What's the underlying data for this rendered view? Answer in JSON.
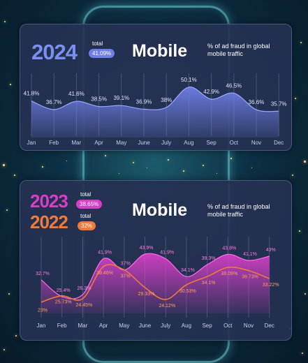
{
  "colors": {
    "mobile_2024": "#6f7fe6",
    "mobile_2023": "#d63fc8",
    "mobile_2022": "#f07a3a",
    "label_2023": "#ff7ee4",
    "label_2022": "#ffa25f",
    "panel": "#263052"
  },
  "top_panel": {
    "year": "2024",
    "total_label": "total",
    "total_value": "41.09%",
    "heading": "Mobile",
    "description": "% of ad fraud in global mobile traffic"
  },
  "bottom_panel": {
    "year_a": "2023",
    "total_label_a": "total",
    "total_value_a": "38.65%",
    "year_b": "2022",
    "total_label_b": "total",
    "total_value_b": "32%",
    "heading": "Mobile",
    "description": "% of ad fraud in global mobile traffic"
  },
  "chart_data": [
    {
      "type": "area",
      "categories": [
        "Jan",
        "Feb",
        "Mar",
        "Apr",
        "May",
        "June",
        "July",
        "Aug",
        "Sep",
        "Oct",
        "Nov",
        "Dec"
      ],
      "series": [
        {
          "name": "2024",
          "values": [
            41.8,
            36.7,
            41.6,
            38.5,
            39.1,
            36.9,
            38,
            50.1,
            42.9,
            46.5,
            36.6,
            35.7
          ],
          "labels": [
            "41.8%",
            "36.7%",
            "41.6%",
            "38.5%",
            "39.1%",
            "36.9%",
            "38%",
            "50.1%",
            "42.9%",
            "46.5%",
            "36.6%",
            "35.7%"
          ]
        }
      ],
      "grid": "vertical lines at each month"
    },
    {
      "type": "area",
      "categories": [
        "Jan",
        "Feb",
        "Mar",
        "Apr",
        "May",
        "June",
        "July",
        "Aug",
        "Sep",
        "Oct",
        "Nov",
        "Dec"
      ],
      "series": [
        {
          "name": "2023",
          "values": [
            32.7,
            25.4,
            26.3,
            41.9,
            37,
            43.9,
            41.9,
            34.1,
            39.3,
            43.8,
            41.1,
            43
          ],
          "labels": [
            "32.7%",
            "25.4%",
            "26.3%",
            "41.9%",
            "37%",
            "43.9%",
            "41.9%",
            "34.1%",
            "39.3%",
            "43.8%",
            "41.1%",
            "43%"
          ]
        },
        {
          "name": "2022",
          "values": [
            23,
            25.73,
            24.45,
            38.46,
            37,
            29.33,
            24.12,
            30.53,
            34.1,
            38.09,
            36.73,
            33.22
          ],
          "labels": [
            "23%",
            "25.73%",
            "24.45%",
            "38.46%",
            "37%",
            "29.33%",
            "24.12%",
            "30.53%",
            "34.1%",
            "38.09%",
            "36.73%",
            "33.22%"
          ]
        }
      ],
      "grid": "vertical lines at each month"
    }
  ]
}
